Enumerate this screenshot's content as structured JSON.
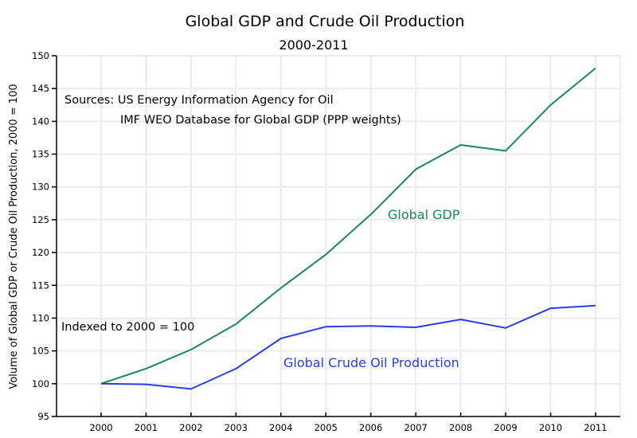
{
  "chart_data": {
    "type": "line",
    "title": "Global GDP and Crude Oil Production",
    "subtitle": "2000-2011",
    "xlabel": "",
    "ylabel": "Volume of Global GDP or Crude Oil Production, 2000 = 100",
    "x": [
      "2000",
      "2001",
      "2002",
      "2003",
      "2004",
      "2005",
      "2006",
      "2007",
      "2008",
      "2009",
      "2010",
      "2011"
    ],
    "ylim": [
      95,
      150
    ],
    "yticks": [
      "95",
      "100",
      "105",
      "110",
      "115",
      "120",
      "125",
      "130",
      "135",
      "140",
      "145",
      "150"
    ],
    "grid": true,
    "legend": "inline labels",
    "series": [
      {
        "name": "Global GDP",
        "color": "#1a8a55",
        "values": [
          100,
          102.3,
          105.2,
          109.1,
          114.6,
          119.7,
          125.8,
          132.7,
          136.4,
          135.5,
          142.5,
          148.1
        ]
      },
      {
        "name": "Global Crude Oil Production",
        "color": "#2a3de6",
        "values": [
          100,
          99.9,
          99.2,
          102.3,
          106.9,
          108.7,
          108.8,
          108.6,
          109.8,
          108.5,
          111.5,
          111.9
        ]
      }
    ],
    "annotations": {
      "sources_line1": "Sources: US Energy Information Agency for Oil",
      "sources_line2": "IMF WEO Database for Global GDP (PPP weights)",
      "index_note": "Indexed to 2000 = 100"
    }
  }
}
